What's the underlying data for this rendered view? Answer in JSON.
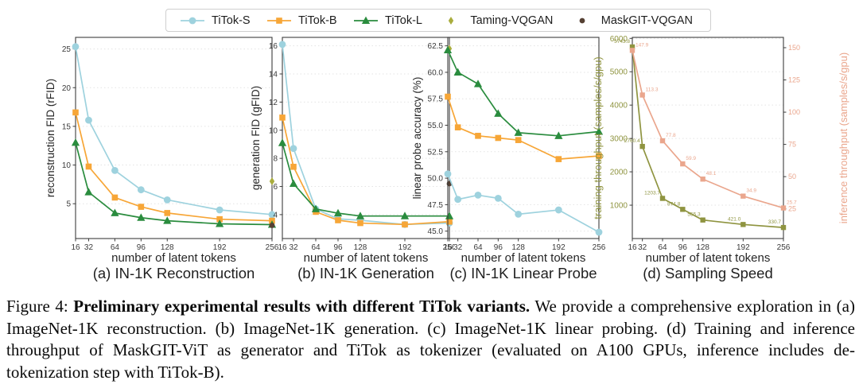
{
  "page": {
    "background": "#ffffff"
  },
  "colors": {
    "titok_s": "#9ed2de",
    "titok_b": "#f7a637",
    "titok_l": "#2a8c3e",
    "taming_vqgan": "#a9ad3d",
    "maskgit_vqgan": "#554033",
    "training_throughput": "#8f9440",
    "inference_throughput": "#eaa68d",
    "grid": "#e3e3e3",
    "spine": "#3c3c3c",
    "tick_text": "#3a3a3a",
    "label_text": "#262626"
  },
  "legend": {
    "items": [
      {
        "label": "TiTok-S",
        "color": "#9ed2de",
        "marker": "circle",
        "line": true
      },
      {
        "label": "TiTok-B",
        "color": "#f7a637",
        "marker": "square",
        "line": true
      },
      {
        "label": "TiTok-L",
        "color": "#2a8c3e",
        "marker": "triangle",
        "line": true
      },
      {
        "label": "Taming-VQGAN",
        "color": "#a9ad3d",
        "marker": "diamond",
        "line": false
      },
      {
        "label": "MaskGIT-VQGAN",
        "color": "#554033",
        "marker": "dot",
        "line": false
      }
    ]
  },
  "chart_data": [
    {
      "id": "a",
      "type": "line",
      "title": "(a) IN-1K Reconstruction",
      "xlabel": "number of latent tokens",
      "ylabel": "reconstruction FID (rFID)",
      "x": [
        16,
        32,
        64,
        96,
        128,
        192,
        256
      ],
      "xticks": [
        "16",
        "32",
        "64",
        "96",
        "128",
        "192",
        "256"
      ],
      "yticks": [
        "5",
        "10",
        "15",
        "20",
        "25"
      ],
      "ylim": [
        0.5,
        26.5
      ],
      "grid": true,
      "legend_position": "shared-top",
      "series": [
        {
          "name": "TiTok-S",
          "color": "#9ed2de",
          "marker": "circle",
          "values": [
            25.3,
            15.8,
            9.3,
            6.8,
            5.5,
            4.2,
            3.6
          ]
        },
        {
          "name": "TiTok-B",
          "color": "#f7a637",
          "marker": "square",
          "values": [
            16.8,
            9.8,
            5.8,
            4.6,
            3.8,
            3.0,
            2.8
          ]
        },
        {
          "name": "TiTok-L",
          "color": "#2a8c3e",
          "marker": "triangle",
          "values": [
            12.9,
            6.5,
            3.8,
            3.2,
            2.8,
            2.4,
            2.3
          ]
        }
      ],
      "points": [
        {
          "name": "Taming-VQGAN",
          "color": "#a9ad3d",
          "marker": "diamond",
          "x": 256,
          "y": 7.9
        },
        {
          "name": "MaskGIT-VQGAN",
          "color": "#554033",
          "marker": "dot",
          "x": 256,
          "y": 2.2
        }
      ]
    },
    {
      "id": "b",
      "type": "line",
      "title": "(b) IN-1K Generation",
      "xlabel": "number of latent tokens",
      "ylabel": "generation FID (gFID)",
      "x": [
        16,
        32,
        64,
        96,
        128,
        192,
        256
      ],
      "xticks": [
        "16",
        "32",
        "64",
        "96",
        "128",
        "192",
        "256"
      ],
      "yticks": [
        "4",
        "6",
        "8",
        "10",
        "12",
        "14",
        "16"
      ],
      "ylim": [
        2.3,
        16.6
      ],
      "grid": true,
      "series": [
        {
          "name": "TiTok-S",
          "color": "#9ed2de",
          "marker": "circle",
          "values": [
            16.1,
            8.7,
            4.4,
            3.7,
            3.6,
            3.3,
            3.4
          ]
        },
        {
          "name": "TiTok-B",
          "color": "#f7a637",
          "marker": "square",
          "values": [
            10.9,
            7.4,
            4.2,
            3.6,
            3.4,
            3.3,
            3.5
          ]
        },
        {
          "name": "TiTok-L",
          "color": "#2a8c3e",
          "marker": "triangle",
          "values": [
            9.1,
            6.2,
            4.4,
            4.1,
            3.9,
            3.9,
            3.9
          ]
        }
      ],
      "points": [
        {
          "name": "Taming-VQGAN",
          "color": "#a9ad3d",
          "marker": "diamond",
          "x": 256,
          "y": 15.8
        },
        {
          "name": "MaskGIT-VQGAN",
          "color": "#554033",
          "marker": "dot",
          "x": 256,
          "y": 6.2
        }
      ]
    },
    {
      "id": "c",
      "type": "line",
      "title": "(c) IN-1K Linear Probe",
      "xlabel": "number of latent tokens",
      "ylabel": "linear probe accuracy (%)",
      "x": [
        16,
        32,
        64,
        96,
        128,
        192,
        256
      ],
      "xticks": [
        "16",
        "32",
        "64",
        "96",
        "128",
        "192",
        "256"
      ],
      "yticks": [
        "45.0",
        "47.5",
        "50.0",
        "52.5",
        "55.0",
        "57.5",
        "60.0",
        "62.5"
      ],
      "ylim": [
        44.3,
        63.3
      ],
      "grid": true,
      "series": [
        {
          "name": "TiTok-S",
          "color": "#9ed2de",
          "marker": "circle",
          "values": [
            50.4,
            48.0,
            48.4,
            48.1,
            46.6,
            47.0,
            44.9
          ]
        },
        {
          "name": "TiTok-B",
          "color": "#f7a637",
          "marker": "square",
          "values": [
            57.7,
            54.8,
            54.0,
            53.8,
            53.6,
            51.8,
            52.1
          ]
        },
        {
          "name": "TiTok-L",
          "color": "#2a8c3e",
          "marker": "triangle",
          "values": [
            62.1,
            60.0,
            58.9,
            56.1,
            54.3,
            54.0,
            54.4
          ]
        }
      ],
      "points": []
    },
    {
      "id": "d",
      "type": "line",
      "title": "(d) Sampling Speed",
      "xlabel": "number of latent tokens",
      "ylabel_left": "training throughput (samples/s/gpu)",
      "ylabel_right": "inference throughput (samples/s/gpu)",
      "x": [
        16,
        32,
        64,
        96,
        128,
        192,
        256
      ],
      "xticks": [
        "16",
        "32",
        "64",
        "96",
        "128",
        "192",
        "256"
      ],
      "yticks_left": [
        "1000",
        "2000",
        "3000",
        "4000",
        "5000",
        "6000"
      ],
      "ylim_left": [
        0,
        6030
      ],
      "yticks_right": [
        "25",
        "50",
        "75",
        "100",
        "125",
        "150"
      ],
      "ylim_right": [
        2,
        158
      ],
      "grid": true,
      "series": [
        {
          "name": "training throughput",
          "axis": "left",
          "color": "#8f9440",
          "marker": "square_small",
          "values": [
            5743.8,
            2760.4,
            1203.7,
            874.8,
            555.3,
            421.0,
            330.7
          ],
          "point_labels": [
            "5743.8",
            "2760.4",
            "1203.7",
            "874.8",
            "555.3",
            "421.0",
            "330.7"
          ]
        },
        {
          "name": "inference throughput",
          "axis": "right",
          "color": "#eaa68d",
          "marker": "square_small",
          "values": [
            147.9,
            113.3,
            77.8,
            59.9,
            48.1,
            34.9,
            25.7
          ],
          "point_labels": [
            "147.9",
            "113.3",
            "77.8",
            "59.9",
            "48.1",
            "34.9",
            "25.7"
          ]
        }
      ],
      "points": []
    }
  ],
  "figure_caption": {
    "prefix": "Figure 4: ",
    "bold": "Preliminary experimental results with different TiTok variants.",
    "rest": " We provide a comprehensive exploration in (a) ImageNet-1K reconstruction. (b) ImageNet-1K generation. (c) ImageNet-1K linear probing. (d) Training and inference throughput of MaskGIT-ViT as generator and TiTok as tokenizer (evaluated on A100 GPUs, inference includes de-tokenization step with TiTok-B)."
  }
}
